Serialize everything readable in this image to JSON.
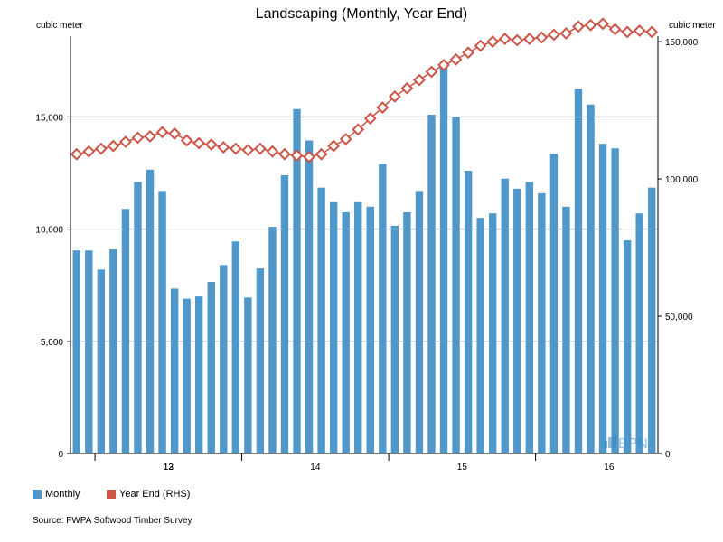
{
  "chart_data": {
    "type": "bar+line",
    "title": "Landscaping (Monthly, Year End)",
    "y_left_label": "cubic meter",
    "y_right_label": "cubic meter",
    "y_left_ticks": [
      "0",
      "5,000",
      "10,000",
      "15,000"
    ],
    "y_right_ticks": [
      "0",
      "50,000",
      "100,000",
      "150,000"
    ],
    "ylim_left": [
      0,
      18600
    ],
    "ylim_right": [
      0,
      152000
    ],
    "x_tick_labels": [
      "12",
      "13",
      "14",
      "15",
      "16"
    ],
    "start": "2011-11",
    "series": [
      {
        "name": "Monthly",
        "kind": "bar",
        "color": "#4f98c9",
        "values": [
          9050,
          9050,
          8200,
          9100,
          10900,
          12100,
          12650,
          11700,
          7350,
          6900,
          7000,
          7650,
          8400,
          9450,
          6950,
          8250,
          10100,
          12400,
          15350,
          13950,
          11850,
          11200,
          10750,
          11200,
          11000,
          12900,
          10150,
          10750,
          11700,
          15100,
          17200,
          15000,
          12600,
          10500,
          10700,
          12250,
          11800,
          12100,
          11600,
          13350,
          11000,
          16250,
          15550,
          13800,
          13600,
          9500,
          10700,
          11850
        ]
      },
      {
        "name": "Year End (RHS)",
        "kind": "line",
        "color": "#cd5548",
        "values": [
          109000,
          110000,
          111000,
          112000,
          113500,
          115000,
          115500,
          117000,
          116500,
          114000,
          113000,
          112500,
          111500,
          111000,
          110500,
          111000,
          110000,
          109000,
          108500,
          108000,
          109000,
          112000,
          114500,
          118000,
          122000,
          126000,
          130000,
          133000,
          136000,
          139000,
          141500,
          143500,
          146000,
          148500,
          150000,
          151000,
          150500,
          151000,
          151500,
          152500,
          153000,
          155500,
          156000,
          156500,
          154500,
          153500,
          154000,
          153500
        ]
      }
    ],
    "legend": [
      {
        "label": "Monthly",
        "color": "#4f98c9"
      },
      {
        "label": "Year End (RHS)",
        "color": "#cd5548"
      }
    ],
    "watermark": "BPN",
    "source": "Source: FWPA Softwood Timber Survey"
  }
}
